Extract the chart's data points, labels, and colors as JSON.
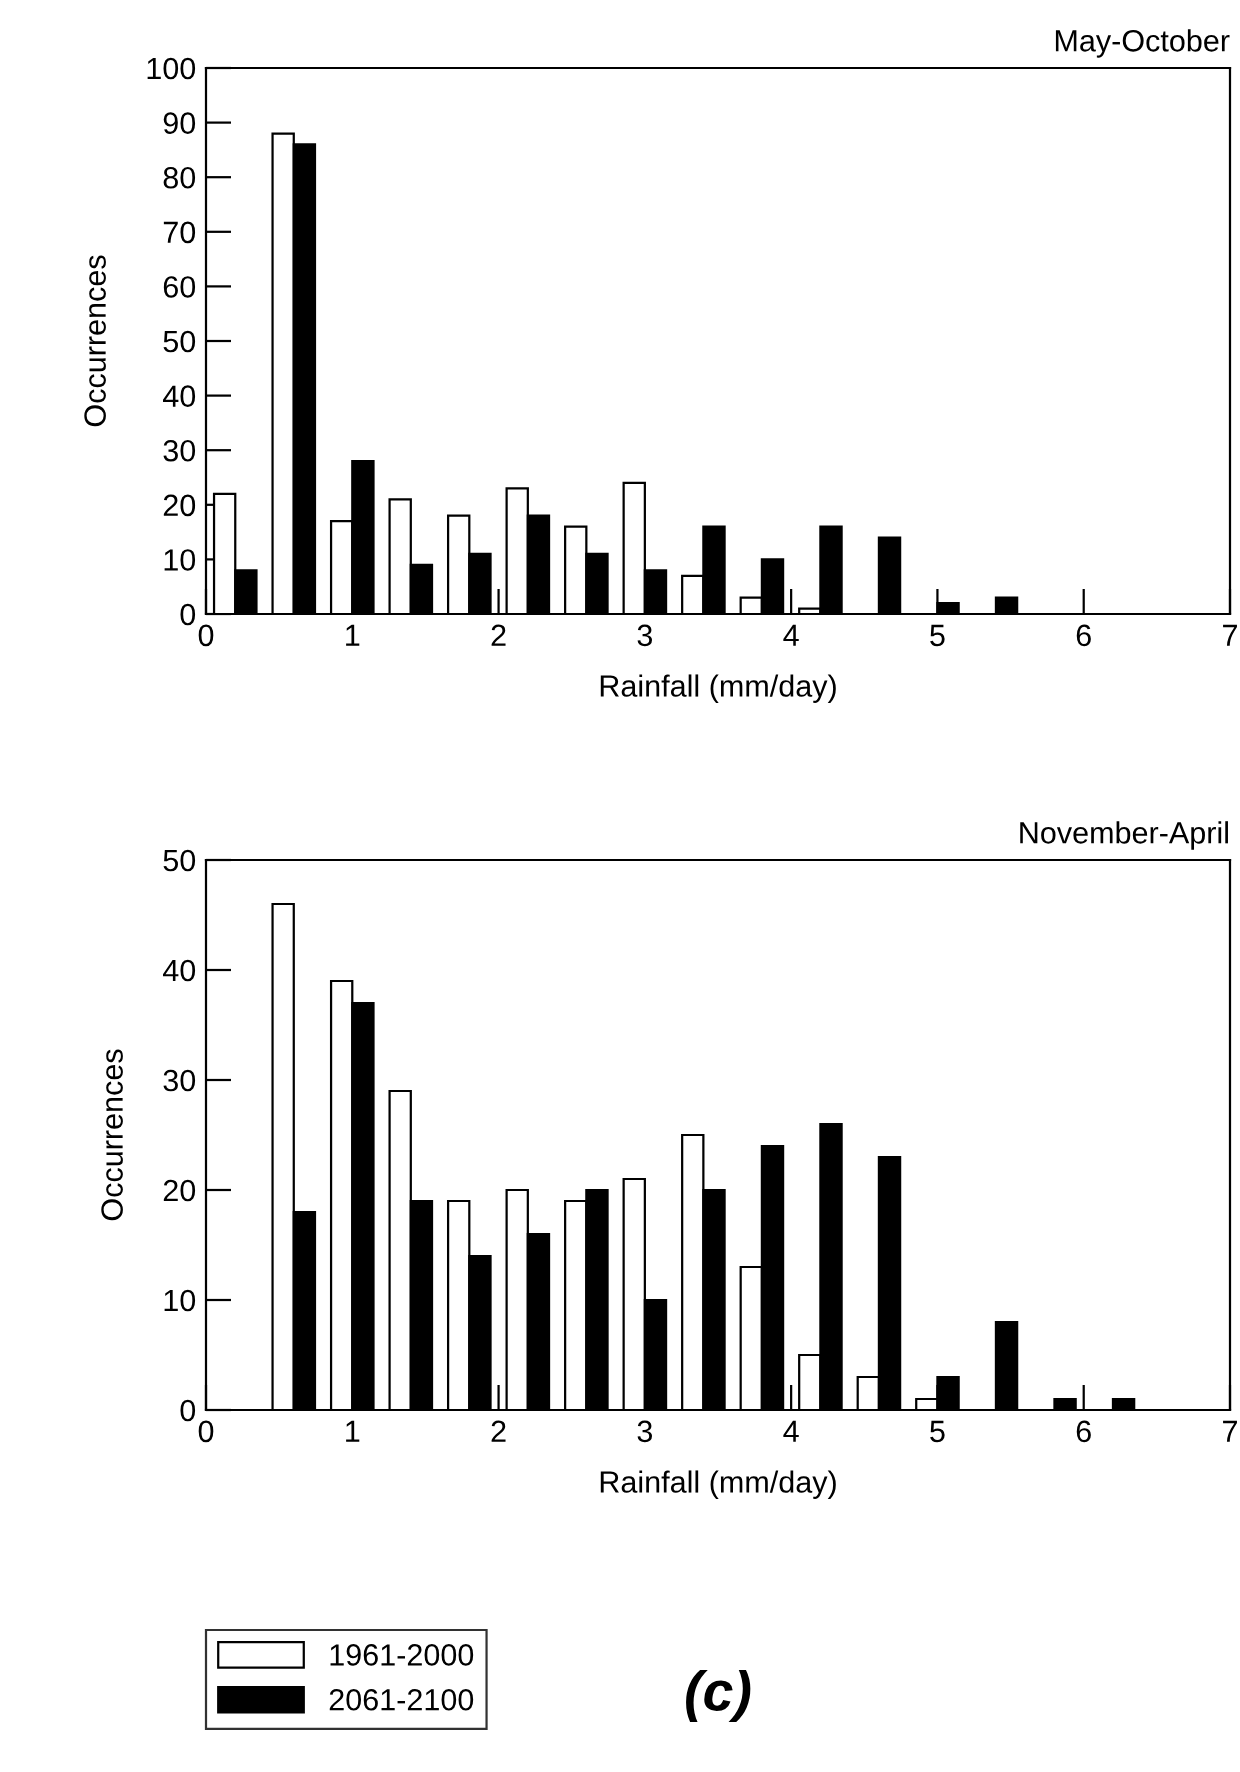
{
  "chart_data": [
    {
      "type": "bar",
      "title": "May-October",
      "xlabel": "Rainfall (mm/day)",
      "ylabel": "Occurrences",
      "x": [
        0.2,
        0.6,
        1.0,
        1.4,
        1.8,
        2.2,
        2.6,
        3.0,
        3.4,
        3.8,
        4.2,
        4.6,
        5.0,
        5.4
      ],
      "series": [
        {
          "color": "#ffffff",
          "values": [
            22,
            88,
            17,
            21,
            18,
            23,
            16,
            24,
            7,
            3,
            1,
            null,
            null,
            null
          ]
        },
        {
          "color": "#000000",
          "values": [
            8,
            86,
            28,
            9,
            11,
            18,
            11,
            8,
            16,
            10,
            16,
            14,
            2,
            3
          ]
        }
      ],
      "xlim": [
        0,
        7
      ],
      "xticks": [
        0,
        1,
        2,
        3,
        4,
        5,
        6,
        7
      ],
      "ylim": [
        0,
        100
      ],
      "yticks": [
        0,
        10,
        20,
        30,
        40,
        50,
        60,
        70,
        80,
        90,
        100
      ]
    },
    {
      "type": "bar",
      "title": "November-April",
      "xlabel": "Rainfall (mm/day)",
      "ylabel": "Occurrences",
      "x": [
        0.6,
        1.0,
        1.4,
        1.8,
        2.2,
        2.6,
        3.0,
        3.4,
        3.8,
        4.2,
        4.6,
        5.0,
        5.4,
        5.8,
        6.2
      ],
      "series": [
        {
          "name": "1961-2000",
          "color": "#ffffff",
          "values": [
            46,
            39,
            29,
            19,
            20,
            19,
            21,
            25,
            13,
            5,
            3,
            1,
            null,
            null,
            null
          ]
        },
        {
          "name": "2061-2100",
          "color": "#000000",
          "values": [
            18,
            37,
            19,
            14,
            16,
            20,
            10,
            20,
            24,
            26,
            23,
            3,
            8,
            1,
            1
          ]
        }
      ],
      "xlim": [
        0,
        7
      ],
      "xticks": [
        0,
        1,
        2,
        3,
        4,
        5,
        6,
        7
      ],
      "ylim": [
        0,
        50
      ],
      "yticks": [
        0,
        10,
        20,
        30,
        40,
        50
      ],
      "legend": "bottom",
      "annotations": [
        "(c)"
      ]
    }
  ]
}
